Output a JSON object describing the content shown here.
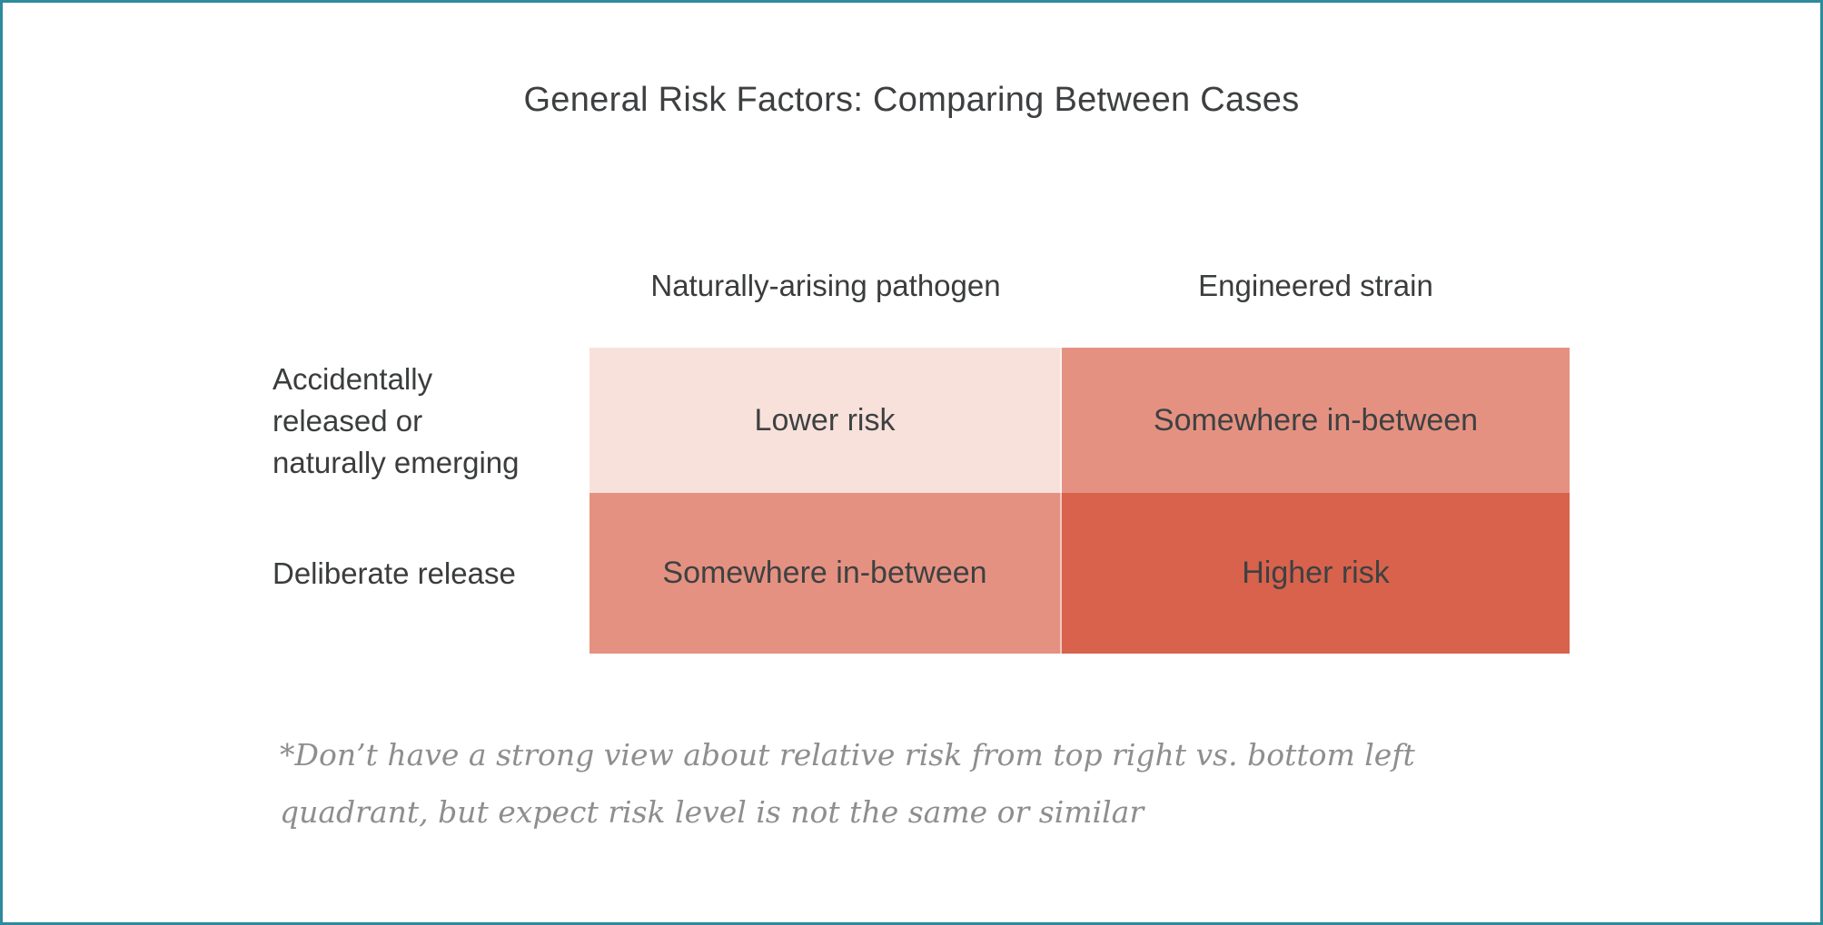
{
  "frame": {
    "border_color": "#2e8a9c",
    "background_color": "#ffffff"
  },
  "title": {
    "text": "General Risk Factors: Comparing Between Cases"
  },
  "matrix": {
    "columns": [
      {
        "header": "Naturally-arising pathogen"
      },
      {
        "header": "Engineered strain"
      }
    ],
    "rows": [
      {
        "header_lines": [
          "Accidentally",
          "released or",
          "naturally emerging"
        ]
      },
      {
        "header_lines": [
          "Deliberate release"
        ]
      }
    ],
    "cells": {
      "accidental_natural": {
        "label": "Lower risk",
        "background": "#f8e1da"
      },
      "accidental_engineered": {
        "label": "Somewhere in-between",
        "background": "#e59181"
      },
      "deliberate_natural": {
        "label": "Somewhere in-between",
        "background": "#e59181"
      },
      "deliberate_engineered": {
        "label": "Higher risk",
        "background": "#d8624c"
      }
    }
  },
  "footnote": {
    "lines": [
      "*Don’t have a strong view about relative risk from top right vs. bottom left",
      "quadrant, but expect risk level is not the same or similar"
    ]
  }
}
